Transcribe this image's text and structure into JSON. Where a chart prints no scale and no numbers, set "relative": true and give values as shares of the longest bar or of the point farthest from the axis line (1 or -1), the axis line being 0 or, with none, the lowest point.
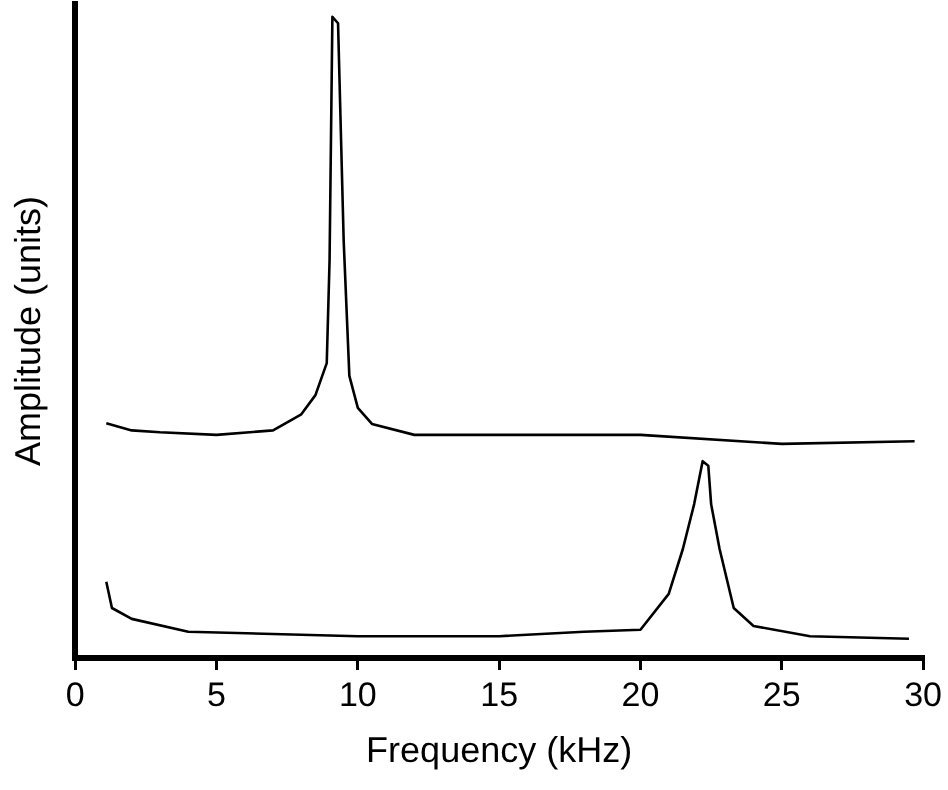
{
  "chart_data": {
    "type": "line",
    "relative": true,
    "xlabel": "Frequency (kHz)",
    "ylabel": "Amplitude (units)",
    "xlim": [
      0,
      30
    ],
    "xticks": [
      0,
      5,
      10,
      15,
      20,
      25,
      30
    ],
    "grid": false,
    "legend": false,
    "marker": "none",
    "line_style": "solid",
    "series": [
      {
        "color": "#000000",
        "x": [
          1.1,
          2,
          3,
          5,
          7,
          8,
          8.5,
          8.9,
          9.0,
          9.1,
          9.3,
          9.5,
          9.7,
          10,
          10.5,
          12,
          15,
          20,
          25,
          29.7
        ],
        "values": [
          0.366,
          0.355,
          0.352,
          0.348,
          0.355,
          0.38,
          0.41,
          0.46,
          0.62,
          1.0,
          0.99,
          0.65,
          0.44,
          0.39,
          0.365,
          0.348,
          0.348,
          0.348,
          0.334,
          0.338
        ]
      },
      {
        "color": "#000000",
        "x": [
          1.1,
          1.3,
          2,
          4,
          10,
          15,
          18,
          20,
          21,
          21.5,
          21.9,
          22.2,
          22.4,
          22.5,
          22.8,
          23.3,
          24,
          26,
          29.5
        ],
        "values": [
          0.119,
          0.078,
          0.061,
          0.041,
          0.034,
          0.034,
          0.041,
          0.044,
          0.1,
          0.17,
          0.24,
          0.307,
          0.3,
          0.24,
          0.17,
          0.078,
          0.05,
          0.034,
          0.03
        ]
      }
    ]
  }
}
